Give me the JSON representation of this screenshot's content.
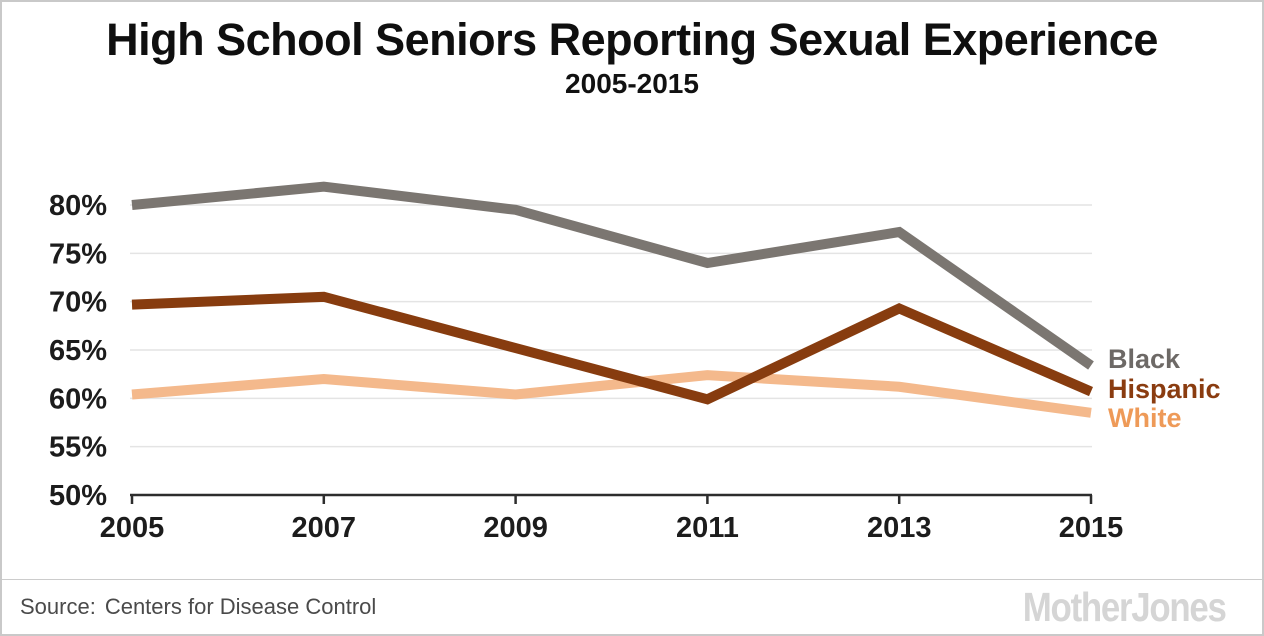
{
  "page": {
    "title": "High School Seniors Reporting Sexual Experience",
    "subtitle": "2005-2015",
    "source_label": "Source:",
    "source_text": "Centers for Disease Control",
    "logo_text": "MotherJones"
  },
  "chart_data": {
    "type": "line",
    "title": "High School Seniors Reporting Sexual Experience",
    "subtitle": "2005-2015",
    "x": [
      2005,
      2007,
      2009,
      2011,
      2013,
      2015
    ],
    "series": [
      {
        "name": "Black",
        "values": [
          80.0,
          81.9,
          79.5,
          74.0,
          77.2,
          63.4
        ],
        "line_color": "#7b7671",
        "label_color": "#6d6966"
      },
      {
        "name": "Hispanic",
        "values": [
          69.7,
          70.5,
          65.2,
          59.9,
          69.3,
          60.7
        ],
        "line_color": "#873c0f",
        "label_color": "#8a3c10"
      },
      {
        "name": "White",
        "values": [
          60.4,
          62.0,
          60.4,
          62.4,
          61.2,
          58.5
        ],
        "line_color": "#f4b98c",
        "label_color": "#ee9a58"
      }
    ],
    "y_ticks": [
      50,
      55,
      60,
      65,
      70,
      75,
      80
    ],
    "y_tick_suffix": "%",
    "ylim": [
      50,
      83
    ],
    "xlabel": "",
    "ylabel": "",
    "grid": "horizontal",
    "legend_position": "right",
    "draw_order": [
      0,
      2,
      1
    ],
    "colors": {
      "grid_line": "#e4e4e4",
      "axis_line": "#2d2d2d",
      "tick_label": "#1c1c1c"
    },
    "source": "Centers for Disease Control"
  }
}
